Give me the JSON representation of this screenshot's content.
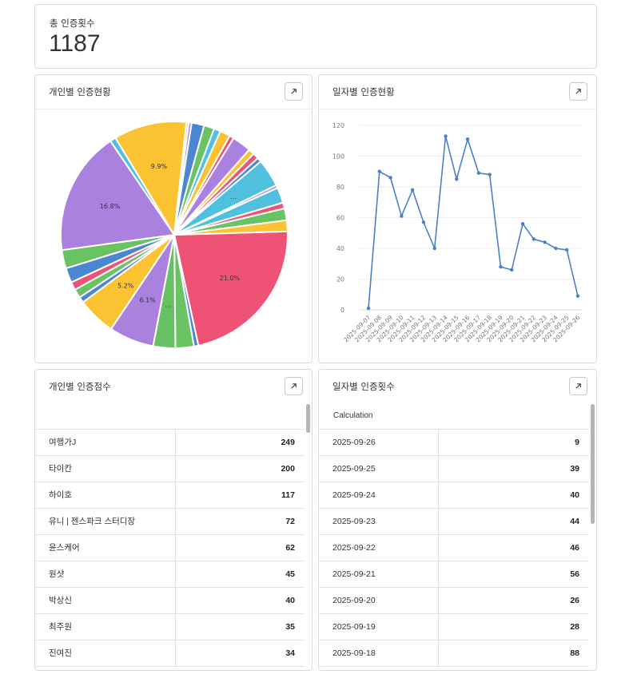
{
  "kpi": {
    "label": "총 인증횟수",
    "value": "1187"
  },
  "pie_card": {
    "title": "개인별 인증현황"
  },
  "line_card": {
    "title": "일자별 인증현황"
  },
  "score_card": {
    "title": "개인별 인증점수",
    "rows": [
      {
        "name": "여행가J",
        "value": "249"
      },
      {
        "name": "타이칸",
        "value": "200"
      },
      {
        "name": "하이호",
        "value": "117"
      },
      {
        "name": "유니 | 젠스파크 스터디장",
        "value": "72"
      },
      {
        "name": "윤스케어",
        "value": "62"
      },
      {
        "name": "원샷",
        "value": "45"
      },
      {
        "name": "박상신",
        "value": "40"
      },
      {
        "name": "최주원",
        "value": "35"
      },
      {
        "name": "진여진",
        "value": "34"
      }
    ]
  },
  "count_card": {
    "title": "일자별 인증횟수",
    "column_label": "Calculation",
    "rows": [
      {
        "date": "2025-09-26",
        "value": "9"
      },
      {
        "date": "2025-09-25",
        "value": "39"
      },
      {
        "date": "2025-09-24",
        "value": "40"
      },
      {
        "date": "2025-09-23",
        "value": "44"
      },
      {
        "date": "2025-09-22",
        "value": "46"
      },
      {
        "date": "2025-09-21",
        "value": "56"
      },
      {
        "date": "2025-09-20",
        "value": "26"
      },
      {
        "date": "2025-09-19",
        "value": "28"
      },
      {
        "date": "2025-09-18",
        "value": "88"
      }
    ]
  },
  "icons": {
    "expand": "expand-arrow-icon"
  },
  "chart_data": [
    {
      "type": "pie",
      "slices": [
        {
          "value": 21.0,
          "label": "21.0%",
          "color": "#ee5375"
        },
        {
          "value": 0.6,
          "label": "",
          "color": "#4b87d0"
        },
        {
          "value": 2.5,
          "label": "",
          "color": "#6ac363"
        },
        {
          "value": 3.0,
          "label": "…",
          "color": "#67c064"
        },
        {
          "value": 6.1,
          "label": "6.1%",
          "color": "#ab81df"
        },
        {
          "value": 5.2,
          "label": "5.2%",
          "color": "#fbc232"
        },
        {
          "value": 0.8,
          "label": "",
          "color": "#4b87d0"
        },
        {
          "value": 1.2,
          "label": "",
          "color": "#6ac363"
        },
        {
          "value": 1.1,
          "label": "",
          "color": "#ee5375"
        },
        {
          "value": 2.0,
          "label": "",
          "color": "#4b87d0"
        },
        {
          "value": 2.5,
          "label": "",
          "color": "#6ac363"
        },
        {
          "value": 16.8,
          "label": "16.8%",
          "color": "#ab81df"
        },
        {
          "value": 0.8,
          "label": "",
          "color": "#4fc1df"
        },
        {
          "value": 9.9,
          "label": "9.9%",
          "color": "#fbc232"
        },
        {
          "value": 0.3,
          "label": "",
          "color": "#fbc232"
        },
        {
          "value": 0.4,
          "label": "",
          "color": "#ab81df"
        },
        {
          "value": 1.7,
          "label": "",
          "color": "#4b87d0"
        },
        {
          "value": 1.4,
          "label": "",
          "color": "#6ac363"
        },
        {
          "value": 0.9,
          "label": "",
          "color": "#4fc1df"
        },
        {
          "value": 1.4,
          "label": "",
          "color": "#fbc232"
        },
        {
          "value": 0.6,
          "label": "",
          "color": "#ee5375"
        },
        {
          "value": 2.6,
          "label": "",
          "color": "#ab81df"
        },
        {
          "value": 0.8,
          "label": "",
          "color": "#fbc232"
        },
        {
          "value": 0.8,
          "label": "",
          "color": "#ee5375"
        },
        {
          "value": 0.6,
          "label": "",
          "color": "#4b87d0"
        },
        {
          "value": 3.8,
          "label": "…",
          "color": "#4fc1df"
        },
        {
          "value": 0.4,
          "label": "",
          "color": "#ab81df"
        },
        {
          "value": 2.1,
          "label": "",
          "color": "#4fc1df"
        },
        {
          "value": 0.8,
          "label": "",
          "color": "#ee5375"
        },
        {
          "value": 1.6,
          "label": "",
          "color": "#6ac363"
        },
        {
          "value": 1.5,
          "label": "",
          "color": "#fbc232"
        }
      ]
    },
    {
      "type": "line",
      "color": "#4b80c8",
      "x": [
        "2025-09-07",
        "2025-09-08",
        "2025-09-09",
        "2025-09-10",
        "2025-09-11",
        "2025-09-12",
        "2025-09-13",
        "2025-09-14",
        "2025-09-15",
        "2025-09-16",
        "2025-09-17",
        "2025-09-18",
        "2025-09-19",
        "2025-09-20",
        "2025-09-21",
        "2025-09-22",
        "2025-09-23",
        "2025-09-24",
        "2025-09-25",
        "2025-09-26"
      ],
      "values": [
        1,
        90,
        86,
        61,
        78,
        57,
        40,
        113,
        85,
        111,
        89,
        88,
        28,
        26,
        56,
        46,
        44,
        40,
        39,
        9
      ],
      "y_ticks": [
        "0",
        "20",
        "40",
        "60",
        "80",
        "100",
        "120"
      ],
      "ylim": [
        0,
        120
      ],
      "grid": true
    }
  ]
}
